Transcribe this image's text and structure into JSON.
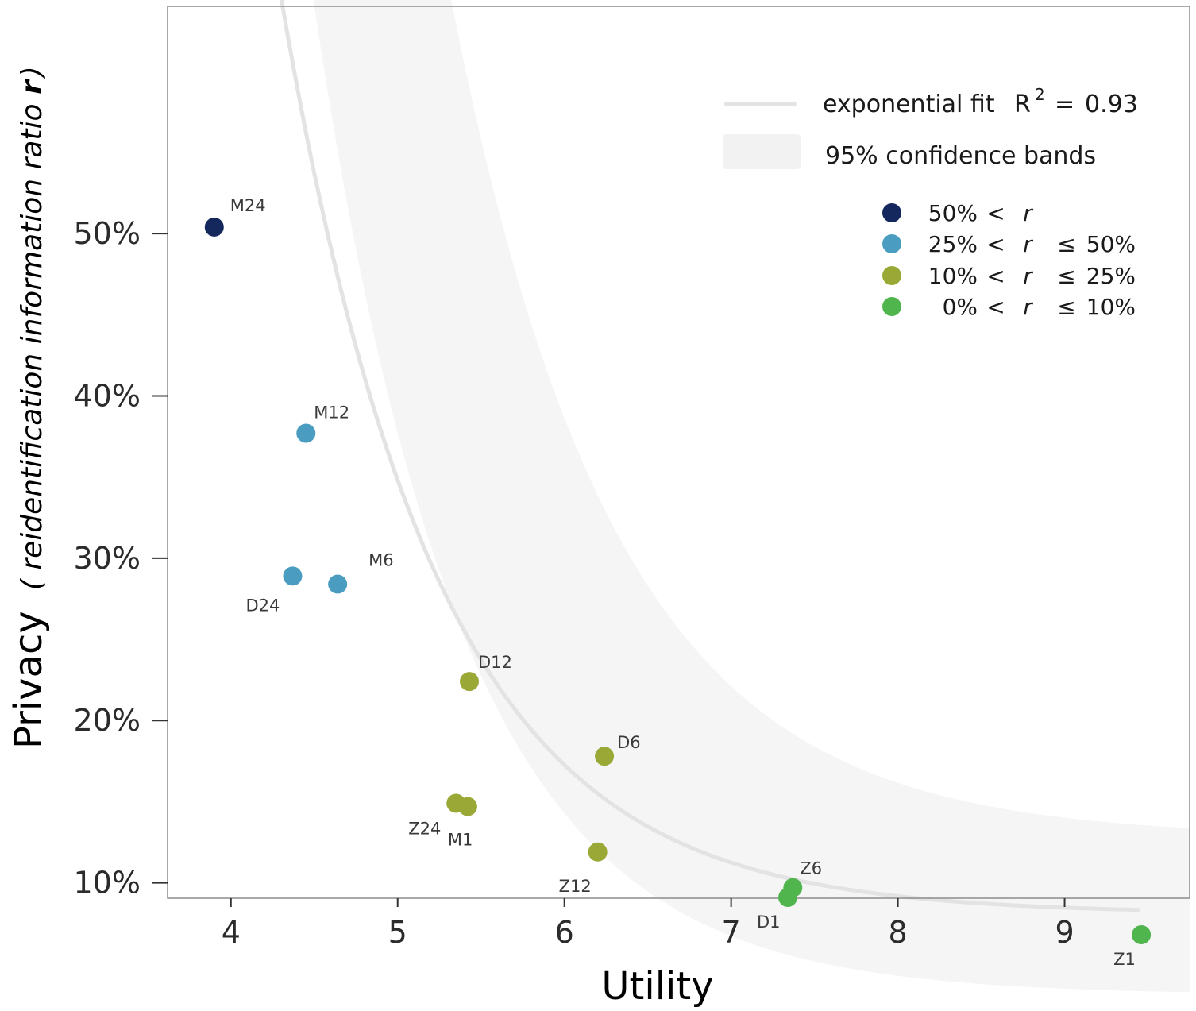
{
  "chart_data": {
    "type": "scatter",
    "xlabel": "Utility",
    "ylabel": "Privacy",
    "ylabel_note": "( reidentification information ratio ",
    "ylabel_var": "r",
    "ylabel_close": " )",
    "xlim": [
      3.62,
      9.75
    ],
    "ylim": [
      0.0905,
      0.64
    ],
    "x_ticks": [
      4,
      5,
      6,
      7,
      8,
      9
    ],
    "x_tick_labels": [
      "4",
      "5",
      "6",
      "7",
      "8",
      "9"
    ],
    "y_ticks": [
      0.1,
      0.2,
      0.3,
      0.4,
      0.5
    ],
    "y_tick_labels": [
      "10%",
      "20%",
      "30%",
      "40%",
      "50%"
    ],
    "grid": false,
    "legend_position": "top-right",
    "points": [
      {
        "label": "M24",
        "x": 3.9,
        "y": 0.504,
        "cat": 0
      },
      {
        "label": "M12",
        "x": 4.45,
        "y": 0.377,
        "cat": 1
      },
      {
        "label": "D24",
        "x": 4.37,
        "y": 0.289,
        "cat": 1
      },
      {
        "label": "M6",
        "x": 4.64,
        "y": 0.284,
        "cat": 1
      },
      {
        "label": "D12",
        "x": 5.43,
        "y": 0.224,
        "cat": 2
      },
      {
        "label": "D6",
        "x": 6.24,
        "y": 0.178,
        "cat": 2
      },
      {
        "label": "Z24",
        "x": 5.35,
        "y": 0.149,
        "cat": 2
      },
      {
        "label": "M1",
        "x": 5.42,
        "y": 0.147,
        "cat": 2
      },
      {
        "label": "Z12",
        "x": 6.2,
        "y": 0.119,
        "cat": 2
      },
      {
        "label": "Z6",
        "x": 7.37,
        "y": 0.097,
        "cat": 3
      },
      {
        "label": "D1",
        "x": 7.34,
        "y": 0.091,
        "cat": 3
      },
      {
        "label": "Z1",
        "x": 9.46,
        "y": 0.068,
        "cat": 3
      }
    ],
    "fit": {
      "type": "exponential",
      "a": 1.33,
      "b": 1.07,
      "c": 0.081,
      "x_range": [
        3.9,
        9.45
      ],
      "color": "#e3e3e3"
    },
    "band": {
      "upper_a": 2.2,
      "upper_b": 1.02,
      "upper_c": 0.128,
      "upper_cap": 0.67,
      "lower_a": 1.2,
      "lower_b": 1.13,
      "lower_c": 0.031,
      "x_range": [
        3.68,
        9.75
      ],
      "color": "#f5f5f5"
    },
    "categories": [
      {
        "color": "#14285e"
      },
      {
        "color": "#4a9dc0"
      },
      {
        "color": "#9aa836"
      },
      {
        "color": "#50b54d"
      }
    ],
    "legend": {
      "fit_label": "exponential fit",
      "r2_symbol": "R",
      "r2_exp": "2",
      "r2_eq": "=",
      "r2_value": "0.93",
      "band_label": "95% confidence bands",
      "cat_rows": [
        {
          "lo": "50%",
          "lt": "<",
          "var": "r",
          "le": "",
          "hi": ""
        },
        {
          "lo": "25%",
          "lt": "<",
          "var": "r",
          "le": "≤",
          "hi": "50%"
        },
        {
          "lo": "10%",
          "lt": "<",
          "var": "r",
          "le": "≤",
          "hi": "25%"
        },
        {
          "lo": "0%",
          "lt": "<",
          "var": "r",
          "le": "≤",
          "hi": "10%"
        }
      ]
    }
  }
}
